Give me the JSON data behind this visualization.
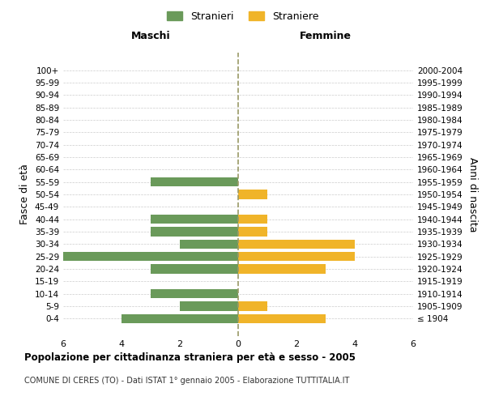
{
  "age_groups": [
    "100+",
    "95-99",
    "90-94",
    "85-89",
    "80-84",
    "75-79",
    "70-74",
    "65-69",
    "60-64",
    "55-59",
    "50-54",
    "45-49",
    "40-44",
    "35-39",
    "30-34",
    "25-29",
    "20-24",
    "15-19",
    "10-14",
    "5-9",
    "0-4"
  ],
  "birth_years": [
    "≤ 1904",
    "1905-1909",
    "1910-1914",
    "1915-1919",
    "1920-1924",
    "1925-1929",
    "1930-1934",
    "1935-1939",
    "1940-1944",
    "1945-1949",
    "1950-1954",
    "1955-1959",
    "1960-1964",
    "1965-1969",
    "1970-1974",
    "1975-1979",
    "1980-1984",
    "1985-1989",
    "1990-1994",
    "1995-1999",
    "2000-2004"
  ],
  "males": [
    0,
    0,
    0,
    0,
    0,
    0,
    0,
    0,
    0,
    3,
    0,
    0,
    3,
    3,
    2,
    6,
    3,
    0,
    3,
    2,
    4
  ],
  "females": [
    0,
    0,
    0,
    0,
    0,
    0,
    0,
    0,
    0,
    0,
    1,
    0,
    1,
    1,
    4,
    4,
    3,
    0,
    0,
    1,
    3
  ],
  "male_color": "#6a9a5a",
  "female_color": "#f0b429",
  "title": "Popolazione per cittadinanza straniera per età e sesso - 2005",
  "subtitle": "COMUNE DI CERES (TO) - Dati ISTAT 1° gennaio 2005 - Elaborazione TUTTITALIA.IT",
  "xlabel_left": "Maschi",
  "xlabel_right": "Femmine",
  "ylabel_left": "Fasce di età",
  "ylabel_right": "Anni di nascita",
  "legend_male": "Stranieri",
  "legend_female": "Straniere",
  "xlim": 6,
  "background_color": "#ffffff",
  "grid_color": "#cccccc"
}
